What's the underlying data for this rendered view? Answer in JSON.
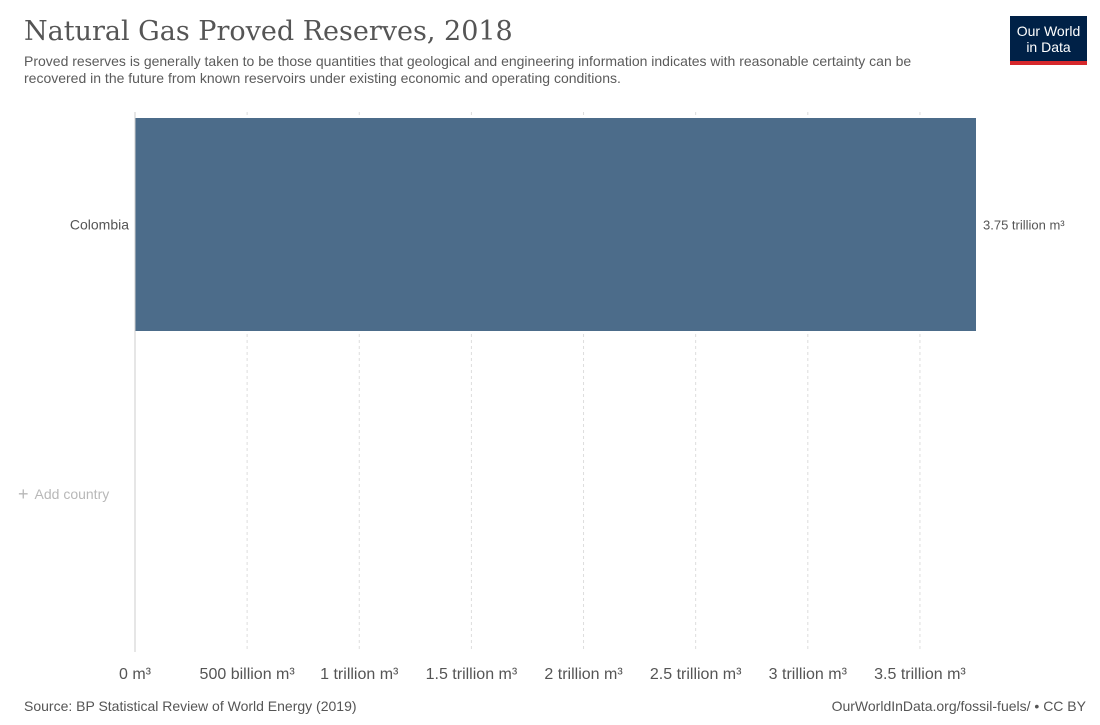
{
  "header": {
    "title": "Natural Gas Proved Reserves, 2018",
    "subtitle": "Proved reserves is generally taken to be those quantities that geological and engineering information indicates with reasonable certainty can be recovered in the future from known reservoirs under existing economic and operating conditions."
  },
  "logo": {
    "line1": "Our World",
    "line2": "in Data"
  },
  "controls": {
    "add_country_icon": "plus-icon",
    "add_country_label": "Add country"
  },
  "footer": {
    "source": "Source: BP Statistical Review of World Energy (2019)",
    "link": "OurWorldInData.org/fossil-fuels/ • CC BY"
  },
  "colors": {
    "bar": "#4c6c8a",
    "logo_bg": "#002147",
    "logo_accent": "#d6282c",
    "grid": "#dddddd"
  },
  "chart_data": {
    "type": "bar",
    "orientation": "horizontal",
    "title": "Natural Gas Proved Reserves, 2018",
    "categories": [
      "Colombia"
    ],
    "values": [
      3.75
    ],
    "value_labels": [
      "3.75 trillion m³"
    ],
    "unit": "trillion m³",
    "xlim": [
      0,
      3.75
    ],
    "xticks": [
      0,
      0.5,
      1,
      1.5,
      2,
      2.5,
      3,
      3.5
    ],
    "xtick_labels": [
      "0 m³",
      "500 billion m³",
      "1 trillion m³",
      "1.5 trillion m³",
      "2 trillion m³",
      "2.5 trillion m³",
      "3 trillion m³",
      "3.5 trillion m³"
    ],
    "grid": true
  }
}
